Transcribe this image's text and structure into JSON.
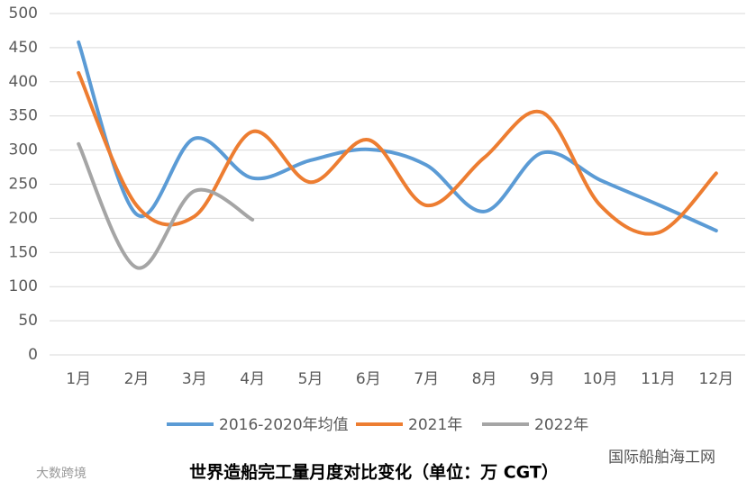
{
  "chart_data": {
    "type": "line",
    "title": "世界造船完工量月度对比变化（单位：万 CGT）",
    "watermarks": [
      "国际船舶海工网",
      "大数跨境"
    ],
    "categories": [
      "1月",
      "2月",
      "3月",
      "4月",
      "5月",
      "6月",
      "7月",
      "8月",
      "9月",
      "10月",
      "11月",
      "12月"
    ],
    "series": [
      {
        "name": "2016-2020年均值",
        "color": "#5b9bd5",
        "values": [
          458,
          206,
          317,
          259,
          285,
          301,
          278,
          210,
          296,
          256,
          220,
          182
        ]
      },
      {
        "name": "2021年",
        "color": "#ed7d31",
        "values": [
          413,
          219,
          203,
          327,
          253,
          315,
          219,
          289,
          355,
          219,
          179,
          266
        ]
      },
      {
        "name": "2022年",
        "color": "#a5a5a5",
        "values": [
          309,
          128,
          240,
          198,
          null,
          null,
          null,
          null,
          null,
          null,
          null,
          null
        ]
      }
    ],
    "ylim": [
      0,
      500
    ],
    "yticks": [
      0,
      50,
      100,
      150,
      200,
      250,
      300,
      350,
      400,
      450,
      500
    ],
    "grid": true,
    "legend": "bottom",
    "smooth": true
  }
}
